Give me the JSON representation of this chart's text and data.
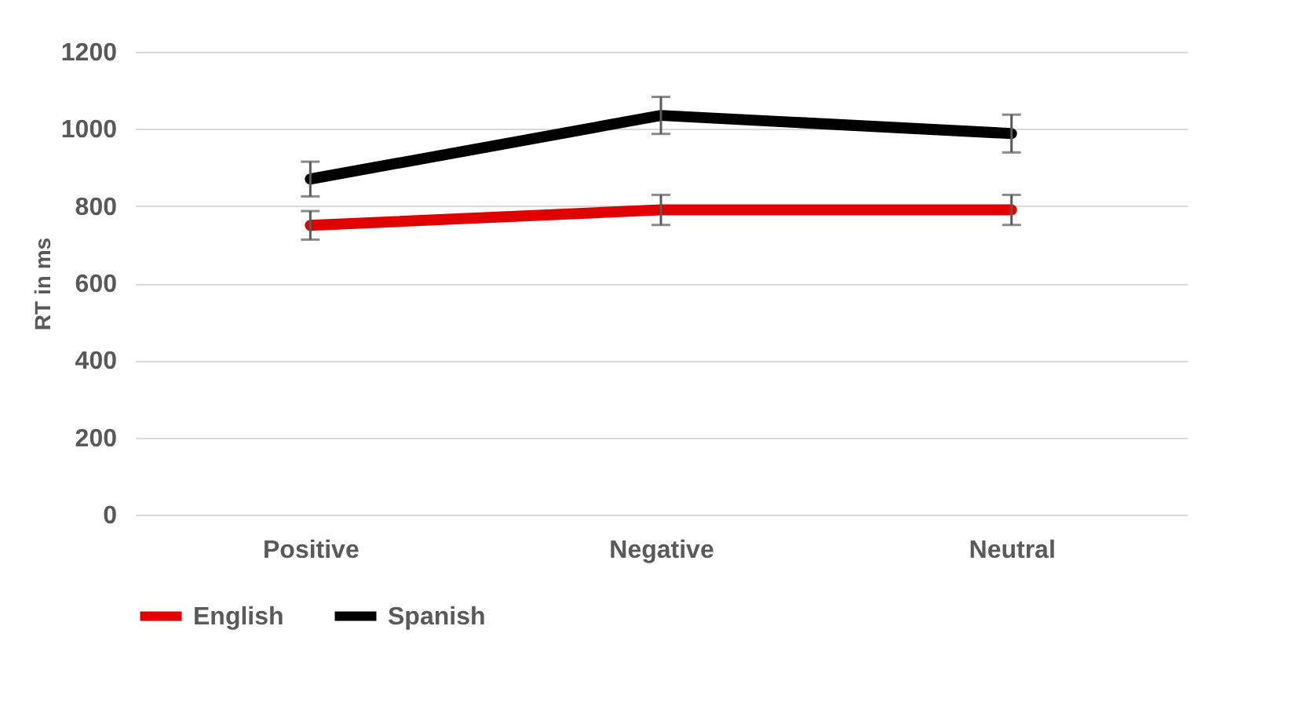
{
  "chart_data": {
    "type": "line",
    "ylabel": "RT in ms",
    "categories": [
      "Positive",
      "Negative",
      "Neutral"
    ],
    "series": [
      {
        "name": "English",
        "color": "#e00000",
        "values": [
          750,
          790,
          790
        ],
        "errors": [
          37,
          39,
          39
        ]
      },
      {
        "name": "Spanish",
        "color": "#000000",
        "values": [
          870,
          1035,
          988
        ],
        "errors": [
          45,
          48,
          49
        ]
      }
    ],
    "ylim": [
      0,
      1200
    ],
    "yticks": [
      0,
      200,
      400,
      600,
      800,
      1000,
      1200
    ],
    "grid": "y",
    "legend": "bottom",
    "marker": "none",
    "line_style": "solid"
  }
}
